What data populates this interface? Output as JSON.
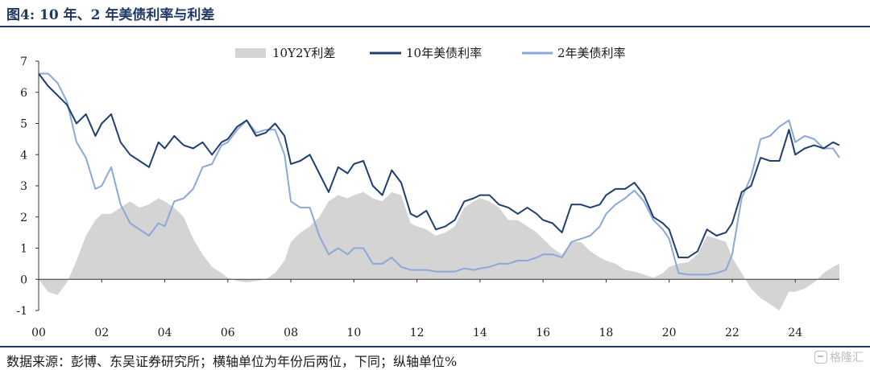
{
  "header": {
    "title": "图4:  10 年、2 年美债利率与利差"
  },
  "footer": {
    "source": "数据来源：彭博、东吴证券研究所；横轴单位为年份后两位，下同；纵轴单位%"
  },
  "watermark": {
    "text": "格隆汇",
    "icon": "logo-icon"
  },
  "colors": {
    "spread": "#d4d4d4",
    "y10": "#1f3f6e",
    "y2": "#8ba8d8",
    "axis": "#333333",
    "rule": "#1f3864"
  },
  "chart_data": {
    "type": "line",
    "title": "",
    "xlabel": "",
    "ylabel": "",
    "xlim": [
      2000,
      2025.4
    ],
    "ylim": [
      -1,
      7
    ],
    "yticks": [
      -1,
      0,
      1,
      2,
      3,
      4,
      5,
      6,
      7
    ],
    "xticks": [
      2000,
      2002,
      2004,
      2006,
      2008,
      2010,
      2012,
      2014,
      2016,
      2018,
      2020,
      2022,
      2024
    ],
    "xtick_labels": [
      "00",
      "02",
      "04",
      "06",
      "08",
      "10",
      "12",
      "14",
      "16",
      "18",
      "20",
      "22",
      "24"
    ],
    "legend_position": "top-center",
    "grid": false,
    "series": [
      {
        "name": "10Y2Y利差",
        "kind": "area",
        "x": [
          2000.0,
          2000.3,
          2000.6,
          2000.9,
          2001.2,
          2001.5,
          2001.8,
          2002.0,
          2002.3,
          2002.6,
          2002.9,
          2003.2,
          2003.5,
          2003.8,
          2004.0,
          2004.3,
          2004.6,
          2004.9,
          2005.2,
          2005.5,
          2005.8,
          2006.0,
          2006.3,
          2006.6,
          2006.9,
          2007.2,
          2007.5,
          2007.8,
          2008.0,
          2008.3,
          2008.6,
          2008.9,
          2009.2,
          2009.5,
          2009.8,
          2010.0,
          2010.3,
          2010.6,
          2010.9,
          2011.2,
          2011.5,
          2011.8,
          2012.0,
          2012.3,
          2012.6,
          2012.9,
          2013.2,
          2013.5,
          2013.8,
          2014.0,
          2014.3,
          2014.6,
          2014.9,
          2015.2,
          2015.5,
          2015.8,
          2016.0,
          2016.3,
          2016.6,
          2016.9,
          2017.2,
          2017.5,
          2017.8,
          2018.0,
          2018.3,
          2018.6,
          2018.9,
          2019.2,
          2019.5,
          2019.8,
          2020.0,
          2020.3,
          2020.6,
          2020.9,
          2021.2,
          2021.5,
          2021.8,
          2022.0,
          2022.3,
          2022.6,
          2022.9,
          2023.2,
          2023.5,
          2023.8,
          2024.0,
          2024.3,
          2024.6,
          2024.9,
          2025.2,
          2025.4
        ],
        "values": [
          0.0,
          -0.4,
          -0.5,
          -0.1,
          0.6,
          1.4,
          1.9,
          2.1,
          2.1,
          2.3,
          2.5,
          2.3,
          2.4,
          2.6,
          2.5,
          2.3,
          2.0,
          1.3,
          0.8,
          0.4,
          0.2,
          0.05,
          -0.05,
          -0.1,
          -0.05,
          0.0,
          0.2,
          0.6,
          1.2,
          1.5,
          1.7,
          2.0,
          2.5,
          2.7,
          2.6,
          2.7,
          2.8,
          2.6,
          2.5,
          2.8,
          2.7,
          1.8,
          1.7,
          1.6,
          1.4,
          1.5,
          1.7,
          2.3,
          2.5,
          2.6,
          2.5,
          2.3,
          1.9,
          1.9,
          1.7,
          1.5,
          1.3,
          1.0,
          0.8,
          1.2,
          1.2,
          0.9,
          0.7,
          0.6,
          0.5,
          0.3,
          0.25,
          0.15,
          0.05,
          0.2,
          0.4,
          0.5,
          0.55,
          0.8,
          1.4,
          1.3,
          1.2,
          0.7,
          0.2,
          -0.3,
          -0.6,
          -0.8,
          -1.0,
          -0.4,
          -0.4,
          -0.3,
          -0.1,
          0.2,
          0.4,
          0.5
        ]
      },
      {
        "name": "10年美债利率",
        "kind": "line",
        "x": [
          2000.0,
          2000.3,
          2000.6,
          2000.9,
          2001.2,
          2001.5,
          2001.8,
          2002.0,
          2002.3,
          2002.6,
          2002.9,
          2003.2,
          2003.5,
          2003.8,
          2004.0,
          2004.3,
          2004.6,
          2004.9,
          2005.2,
          2005.5,
          2005.8,
          2006.0,
          2006.3,
          2006.6,
          2006.9,
          2007.2,
          2007.5,
          2007.8,
          2008.0,
          2008.3,
          2008.6,
          2008.9,
          2009.2,
          2009.5,
          2009.8,
          2010.0,
          2010.3,
          2010.6,
          2010.9,
          2011.2,
          2011.5,
          2011.8,
          2012.0,
          2012.3,
          2012.6,
          2012.9,
          2013.2,
          2013.5,
          2013.8,
          2014.0,
          2014.3,
          2014.6,
          2014.9,
          2015.2,
          2015.5,
          2015.8,
          2016.0,
          2016.3,
          2016.6,
          2016.9,
          2017.2,
          2017.5,
          2017.8,
          2018.0,
          2018.3,
          2018.6,
          2018.9,
          2019.2,
          2019.5,
          2019.8,
          2020.0,
          2020.3,
          2020.6,
          2020.9,
          2021.2,
          2021.5,
          2021.8,
          2022.0,
          2022.3,
          2022.6,
          2022.9,
          2023.2,
          2023.5,
          2023.8,
          2024.0,
          2024.3,
          2024.6,
          2024.9,
          2025.2,
          2025.4
        ],
        "values": [
          6.6,
          6.2,
          5.9,
          5.6,
          5.0,
          5.3,
          4.6,
          5.0,
          5.3,
          4.4,
          4.0,
          3.8,
          3.6,
          4.4,
          4.2,
          4.6,
          4.3,
          4.2,
          4.4,
          4.0,
          4.4,
          4.5,
          4.9,
          5.1,
          4.6,
          4.7,
          5.0,
          4.6,
          3.7,
          3.8,
          4.0,
          3.4,
          2.8,
          3.6,
          3.4,
          3.7,
          3.8,
          3.0,
          2.7,
          3.5,
          3.1,
          2.1,
          2.0,
          2.2,
          1.6,
          1.7,
          1.9,
          2.5,
          2.6,
          2.7,
          2.7,
          2.4,
          2.3,
          2.1,
          2.3,
          2.1,
          1.9,
          1.8,
          1.5,
          2.4,
          2.4,
          2.3,
          2.4,
          2.7,
          2.9,
          2.9,
          3.1,
          2.7,
          2.0,
          1.8,
          1.6,
          0.7,
          0.7,
          0.9,
          1.6,
          1.4,
          1.5,
          1.8,
          2.8,
          3.0,
          3.9,
          3.8,
          3.8,
          4.8,
          4.0,
          4.2,
          4.3,
          4.2,
          4.4,
          4.3
        ]
      },
      {
        "name": "2年美债利率",
        "kind": "line",
        "x": [
          2000.0,
          2000.3,
          2000.6,
          2000.9,
          2001.2,
          2001.5,
          2001.8,
          2002.0,
          2002.3,
          2002.6,
          2002.9,
          2003.2,
          2003.5,
          2003.8,
          2004.0,
          2004.3,
          2004.6,
          2004.9,
          2005.2,
          2005.5,
          2005.8,
          2006.0,
          2006.3,
          2006.6,
          2006.9,
          2007.2,
          2007.5,
          2007.8,
          2008.0,
          2008.3,
          2008.6,
          2008.9,
          2009.2,
          2009.5,
          2009.8,
          2010.0,
          2010.3,
          2010.6,
          2010.9,
          2011.2,
          2011.5,
          2011.8,
          2012.0,
          2012.3,
          2012.6,
          2012.9,
          2013.2,
          2013.5,
          2013.8,
          2014.0,
          2014.3,
          2014.6,
          2014.9,
          2015.2,
          2015.5,
          2015.8,
          2016.0,
          2016.3,
          2016.6,
          2016.9,
          2017.2,
          2017.5,
          2017.8,
          2018.0,
          2018.3,
          2018.6,
          2018.9,
          2019.2,
          2019.5,
          2019.8,
          2020.0,
          2020.3,
          2020.6,
          2020.9,
          2021.2,
          2021.5,
          2021.8,
          2022.0,
          2022.3,
          2022.6,
          2022.9,
          2023.2,
          2023.5,
          2023.8,
          2024.0,
          2024.3,
          2024.6,
          2024.9,
          2025.2,
          2025.4
        ],
        "values": [
          6.6,
          6.6,
          6.3,
          5.7,
          4.4,
          3.9,
          2.9,
          3.0,
          3.6,
          2.4,
          1.8,
          1.6,
          1.4,
          1.8,
          1.7,
          2.5,
          2.6,
          2.9,
          3.6,
          3.7,
          4.3,
          4.4,
          4.8,
          5.1,
          4.7,
          4.8,
          4.8,
          4.0,
          2.5,
          2.3,
          2.3,
          1.4,
          0.8,
          1.0,
          0.8,
          1.0,
          1.0,
          0.5,
          0.5,
          0.7,
          0.4,
          0.3,
          0.3,
          0.3,
          0.25,
          0.25,
          0.25,
          0.35,
          0.3,
          0.35,
          0.4,
          0.5,
          0.5,
          0.6,
          0.6,
          0.7,
          0.8,
          0.8,
          0.7,
          1.2,
          1.3,
          1.4,
          1.7,
          2.1,
          2.4,
          2.6,
          2.85,
          2.5,
          1.9,
          1.6,
          1.3,
          0.2,
          0.15,
          0.15,
          0.15,
          0.2,
          0.3,
          0.8,
          2.6,
          3.3,
          4.5,
          4.6,
          4.9,
          5.1,
          4.4,
          4.6,
          4.5,
          4.2,
          4.2,
          3.9
        ]
      }
    ]
  }
}
